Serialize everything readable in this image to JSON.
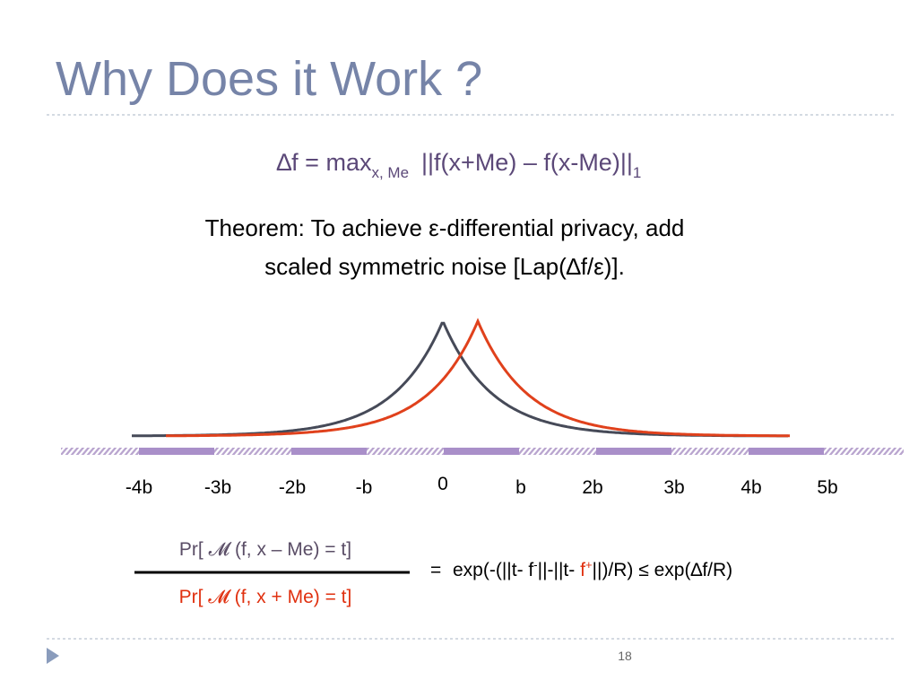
{
  "title": "Why Does it Work ?",
  "sensitivity": {
    "lhs": "∆f = max",
    "sub": "x, Me",
    "rhs": "||f(x+Me) – f(x-Me)||",
    "norm": "1"
  },
  "theorem": [
    "Theorem: To achieve ε-differential privacy, add",
    "scaled symmetric noise [Lap(∆f/ε)]."
  ],
  "axis_labels": [
    "-4b",
    "-3b",
    "-2b",
    "-b",
    "0",
    "b",
    "2b",
    "3b",
    "4b",
    "5b"
  ],
  "ratio": {
    "numerator": "Pr[ 𝓜 (f, x – Me) = t]",
    "denominator": "Pr[ 𝓜 (f, x + Me) = t]",
    "equals": "=",
    "rhs": [
      "exp(-(||t- ",
      "f",
      "-",
      "||-||t- ",
      "f",
      "+",
      "||)/R) ≤ exp(∆f/R)"
    ]
  },
  "page_number": "18"
}
